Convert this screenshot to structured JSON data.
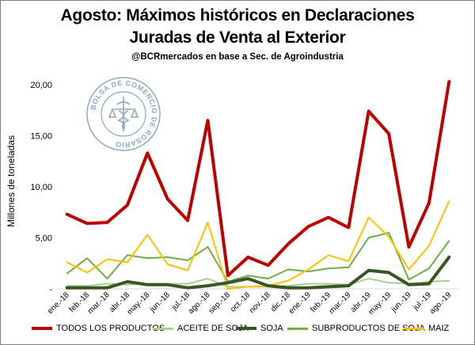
{
  "chart_data": {
    "type": "line",
    "title_line1": "Agosto: Máximos históricos en Declaraciones",
    "title_line2": "Juradas de Venta al Exterior",
    "subtitle": "@BCRmercados en base a Sec. de Agroindustria",
    "ylabel": "Millones de toneladas",
    "xlabel": "",
    "ylim": [
      0,
      20
    ],
    "yticks": [
      0,
      5,
      10,
      15,
      20
    ],
    "ytick_labels": [
      "-",
      "5,00",
      "10,00",
      "15,00",
      "20,00"
    ],
    "categories": [
      "ene.-18",
      "feb.-18",
      "mar.-18",
      "abr.-18",
      "may.-18",
      "jun.-18",
      "jul.-18",
      "ago.-18",
      "sep.-18",
      "oct.-18",
      "nov.-18",
      "dic.-18",
      "ene.-19",
      "feb.-19",
      "mar.-19",
      "abr.-19",
      "may.-19",
      "jun.-19",
      "jul.-19",
      "ago.-19"
    ],
    "series": [
      {
        "name": "TODOS LOS PRODUCTOS",
        "color": "#c00000",
        "width": 4,
        "values": [
          7.3,
          6.4,
          6.5,
          8.2,
          13.3,
          8.8,
          6.7,
          16.5,
          1.3,
          3.1,
          2.3,
          4.4,
          6.1,
          7.0,
          6.0,
          17.4,
          15.2,
          4.1,
          8.4,
          20.3
        ]
      },
      {
        "name": "ACEITE DE SOJA",
        "color": "#a9d18e",
        "width": 2,
        "values": [
          0.3,
          0.3,
          0.5,
          0.4,
          0.5,
          0.5,
          0.5,
          1.0,
          0.2,
          0.2,
          0.2,
          0.3,
          0.5,
          0.5,
          0.4,
          1.0,
          0.6,
          0.5,
          0.7,
          0.8
        ]
      },
      {
        "name": "SOJA",
        "color": "#375623",
        "width": 4,
        "values": [
          0.1,
          0.1,
          0.1,
          0.7,
          0.4,
          0.4,
          0.1,
          0.3,
          0.6,
          1.0,
          0.3,
          0.1,
          0.1,
          0.2,
          0.3,
          1.8,
          1.6,
          0.4,
          0.5,
          3.1
        ]
      },
      {
        "name": "SUBPRODUCTOS DE SOJA",
        "color": "#70ad47",
        "width": 2,
        "values": [
          1.5,
          3.0,
          1.0,
          3.3,
          3.0,
          3.1,
          2.8,
          4.1,
          0.7,
          1.3,
          1.0,
          1.9,
          1.7,
          2.0,
          2.1,
          5.0,
          5.5,
          0.9,
          2.0,
          4.7
        ]
      },
      {
        "name": "MAIZ",
        "color": "#ffc000",
        "width": 2,
        "values": [
          2.6,
          1.6,
          2.9,
          2.6,
          5.3,
          2.4,
          1.8,
          6.5,
          0.0,
          0.2,
          0.3,
          0.8,
          1.9,
          3.3,
          2.7,
          7.0,
          5.1,
          1.9,
          4.2,
          8.6
        ]
      }
    ],
    "legend_position": "bottom",
    "grid": false
  },
  "seal": {
    "text": "BOLSA DE COMERCIO DE ROSARIO"
  }
}
